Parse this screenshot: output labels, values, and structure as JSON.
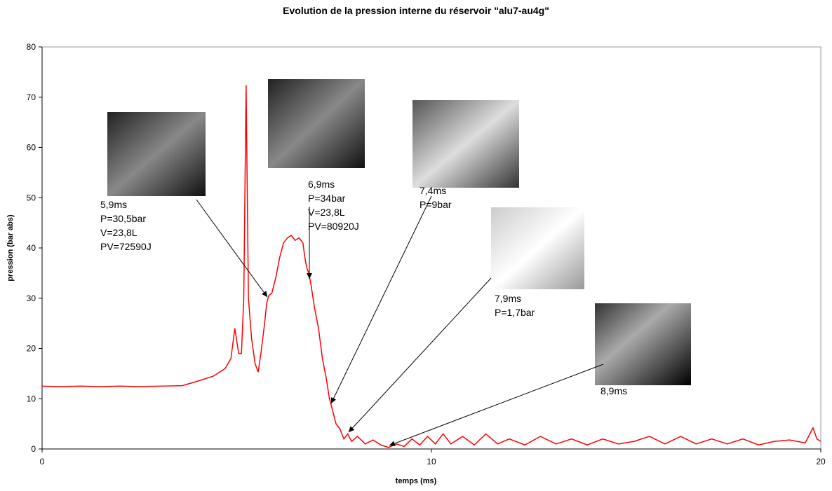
{
  "chart_data": {
    "type": "line",
    "title": "Evolution de la pression interne du  réservoir \"alu7-au4g\"",
    "x_label": "temps (ms)",
    "y_label": "pression (bar abs)",
    "xlim": [
      0,
      20
    ],
    "xticks": [
      0,
      10,
      20
    ],
    "ylim": [
      0,
      80
    ],
    "yticks": [
      0,
      10,
      20,
      30,
      40,
      50,
      60,
      70,
      80
    ],
    "x": [
      0,
      0.5,
      1,
      1.5,
      2,
      2.5,
      3,
      3.6,
      4.0,
      4.4,
      4.7,
      4.85,
      4.95,
      5.05,
      5.12,
      5.18,
      5.24,
      5.3,
      5.38,
      5.47,
      5.55,
      5.62,
      5.7,
      5.77,
      5.82,
      5.9,
      6.0,
      6.1,
      6.2,
      6.3,
      6.4,
      6.5,
      6.6,
      6.7,
      6.75,
      6.8,
      6.85,
      6.9,
      7.0,
      7.1,
      7.2,
      7.3,
      7.38,
      7.45,
      7.55,
      7.65,
      7.75,
      7.85,
      7.95,
      8.1,
      8.3,
      8.5,
      8.7,
      8.9,
      9.1,
      9.3,
      9.5,
      9.7,
      9.9,
      10.1,
      10.3,
      10.5,
      10.8,
      11.1,
      11.4,
      11.7,
      12,
      12.4,
      12.8,
      13.2,
      13.6,
      14,
      14.4,
      14.8,
      15.2,
      15.6,
      16,
      16.4,
      16.8,
      17.2,
      17.6,
      18,
      18.4,
      18.8,
      19.2,
      19.6,
      19.8,
      19.9,
      20
    ],
    "series": [
      {
        "name": "pression",
        "color": "#ff0000",
        "values": [
          12.5,
          12.4,
          12.5,
          12.4,
          12.5,
          12.4,
          12.5,
          12.6,
          13.5,
          14.5,
          16,
          18,
          24,
          19,
          19,
          30,
          72.4,
          30,
          22,
          17,
          15.3,
          19,
          24,
          29,
          30.5,
          31,
          34,
          38,
          41,
          42,
          42.5,
          41.5,
          42,
          41,
          38,
          36,
          35,
          33,
          28,
          24,
          18,
          14,
          10,
          8,
          5,
          4,
          2,
          3,
          1.5,
          2.5,
          1,
          1.8,
          0.8,
          0.3,
          1,
          0.5,
          2,
          0.8,
          2.5,
          1,
          3,
          1,
          2.5,
          0.8,
          3,
          1,
          2,
          0.8,
          2.5,
          1,
          2,
          0.8,
          2,
          1,
          1.5,
          2.5,
          1,
          2.5,
          1,
          2,
          1,
          2,
          0.8,
          1.5,
          1.8,
          1.2,
          4.2,
          2,
          1.5
        ]
      }
    ],
    "annotations": [
      {
        "text": [
          "5,9ms",
          "P=30,5bar",
          "V=23,8L",
          "PV=72590J"
        ]
      },
      {
        "text": [
          "6,9ms",
          "P=34bar",
          "V=23,8L",
          "PV=80920J"
        ]
      },
      {
        "text": [
          "7,4ms",
          "P=9bar"
        ]
      },
      {
        "text": [
          "7,9ms",
          "P=1,7bar"
        ]
      },
      {
        "text": [
          "8,9ms"
        ]
      }
    ]
  }
}
